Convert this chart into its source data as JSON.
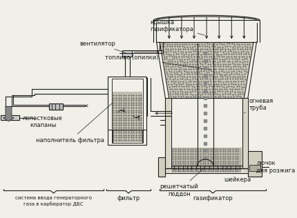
{
  "bg_color": "#f0efe8",
  "line_color": "#1a1a1a",
  "text_color": "#1a1a1a",
  "fill_color": "#c8c7b8",
  "labels": {
    "gasifier_lid": "крышка\nгазификатора",
    "fuel": "топливо (опилки)",
    "fan": "вентилятор",
    "petal_valves": "лепастковые\nклапаны",
    "filter_fill": "наполнитель фильтра",
    "fire_tube": "огневая\nтруба",
    "igniter": "лючок\nдля розжига",
    "shaker": "шейкера",
    "grate": "решетчатый\nподдон",
    "filter_label": "фильтр",
    "gasifier_label": "газификатор",
    "system_label": "система ввода генераторного\nгаза в карбюратор ДВС"
  },
  "figsize": [
    4.3,
    3.16
  ],
  "dpi": 100
}
